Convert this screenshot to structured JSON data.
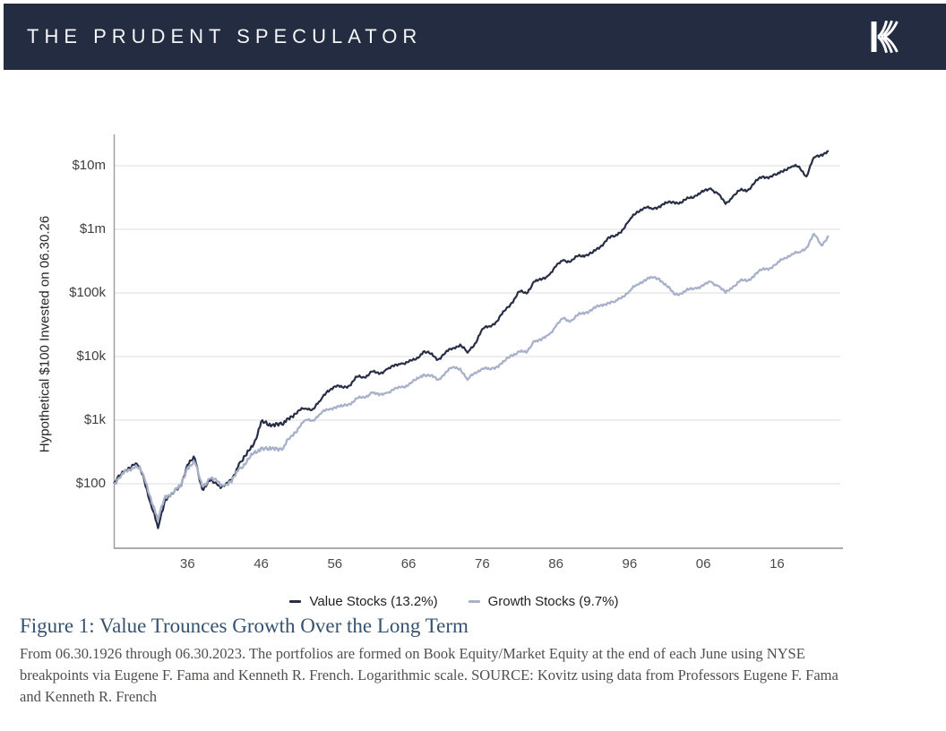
{
  "header": {
    "title": "THE PRUDENT SPECULATOR",
    "logo": "kovitz-k-logo",
    "bg_color": "#232c41"
  },
  "chart_data": {
    "type": "line",
    "log_scale": true,
    "ylabel": "Hypothetical $100 Invested on 06.30.26",
    "xlabel": "",
    "grid": "horizontal",
    "legend_position": "bottom",
    "start_year": 1926,
    "end_year": 2023,
    "axis_range_dollars": [
      10,
      30000000
    ],
    "y_ticks": [
      {
        "value": 10000000,
        "label": "$10m"
      },
      {
        "value": 1000000,
        "label": "$1m"
      },
      {
        "value": 100000,
        "label": "$100k"
      },
      {
        "value": 10000,
        "label": "$10k"
      },
      {
        "value": 1000,
        "label": "$1k"
      },
      {
        "value": 100,
        "label": "$100"
      }
    ],
    "x_ticks": [
      {
        "year": 1936,
        "label": "36"
      },
      {
        "year": 1946,
        "label": "46"
      },
      {
        "year": 1956,
        "label": "56"
      },
      {
        "year": 1966,
        "label": "66"
      },
      {
        "year": 1976,
        "label": "76"
      },
      {
        "year": 1986,
        "label": "86"
      },
      {
        "year": 1996,
        "label": "96"
      },
      {
        "year": 2006,
        "label": "06"
      },
      {
        "year": 2016,
        "label": "16"
      }
    ],
    "series": [
      {
        "name": "Value Stocks (13.2%)",
        "cagr_pct": 13.2,
        "color": "#272e46",
        "values": [
          100,
          140,
          180,
          210,
          135,
          50,
          20,
          60,
          70,
          90,
          200,
          250,
          82,
          110,
          98,
          92,
          110,
          210,
          280,
          420,
          950,
          820,
          900,
          850,
          1150,
          1400,
          1520,
          1500,
          2000,
          2900,
          3400,
          3300,
          3500,
          4800,
          4700,
          5800,
          5300,
          6300,
          7000,
          7800,
          8200,
          9000,
          12000,
          11000,
          9000,
          11500,
          13500,
          15500,
          11500,
          16000,
          27000,
          30000,
          36000,
          52000,
          70000,
          105000,
          98000,
          150000,
          160000,
          190000,
          260000,
          330000,
          310000,
          380000,
          390000,
          430000,
          530000,
          720000,
          780000,
          980000,
          1400000,
          1900000,
          2200000,
          2100000,
          2300000,
          2600000,
          2700000,
          2600000,
          3100000,
          3400000,
          3900000,
          4400000,
          3600000,
          2500000,
          3300000,
          4100000,
          4100000,
          5500000,
          6700000,
          6700000,
          7300000,
          8700000,
          9700000,
          9700000,
          6800000,
          13500000,
          15000000,
          16800000
        ]
      },
      {
        "name": "Growth Stocks (9.7%)",
        "cagr_pct": 9.7,
        "color": "#a8b1ca",
        "values": [
          100,
          132,
          168,
          195,
          140,
          62,
          27,
          65,
          72,
          90,
          180,
          215,
          92,
          120,
          108,
          95,
          105,
          175,
          215,
          300,
          370,
          340,
          370,
          360,
          550,
          750,
          1000,
          1000,
          1250,
          1480,
          1600,
          1650,
          1800,
          2200,
          2250,
          2740,
          2450,
          2700,
          3000,
          3300,
          3600,
          4300,
          5200,
          5000,
          4300,
          5600,
          6800,
          6500,
          4300,
          5600,
          6500,
          6300,
          7000,
          8400,
          10500,
          12000,
          11500,
          17500,
          18000,
          22000,
          30000,
          40000,
          36000,
          45000,
          49000,
          56000,
          63000,
          70000,
          72000,
          88000,
          107000,
          135000,
          160000,
          175000,
          168000,
          130000,
          97000,
          98000,
          112000,
          120000,
          130000,
          150000,
          130000,
          100000,
          125000,
          155000,
          155000,
          195000,
          235000,
          245000,
          290000,
          355000,
          410000,
          430000,
          520000,
          850000,
          560000,
          794000
        ]
      }
    ]
  },
  "caption": {
    "title": "Figure 1: Value Trounces Growth Over the Long Term",
    "body": "From 06.30.1926 through 06.30.2023. The portfolios are formed on Book Equity/Market Equity at the end of each June using NYSE breakpoints via Eugene F. Fama and Kenneth R. French. Logarithmic scale. SOURCE: Kovitz using data from Professors Eugene F. Fama and Kenneth R. French"
  }
}
